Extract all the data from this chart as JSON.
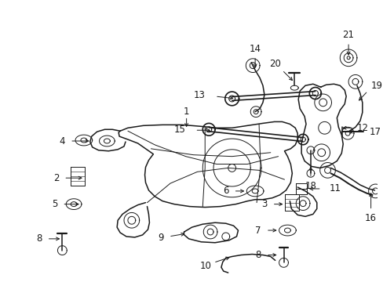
{
  "background_color": "#ffffff",
  "figsize": [
    4.89,
    3.6
  ],
  "dpi": 100,
  "xlim": [
    0,
    489
  ],
  "ylim": [
    0,
    360
  ]
}
